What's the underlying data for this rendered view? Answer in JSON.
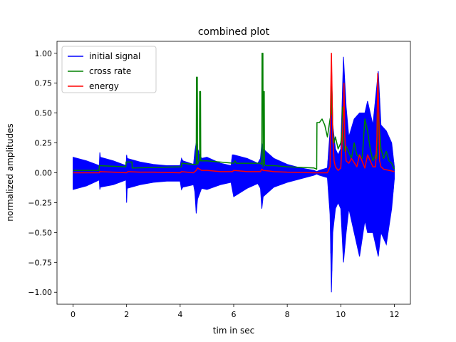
{
  "chart_data": {
    "type": "line",
    "title": "combined plot",
    "xlabel": "tim in sec",
    "ylabel": "normalized amplitudes",
    "xlim": [
      -0.6,
      12.6
    ],
    "ylim": [
      -1.1,
      1.1
    ],
    "xticks": [
      0,
      2,
      4,
      6,
      8,
      10,
      12
    ],
    "xtick_labels": [
      "0",
      "2",
      "4",
      "6",
      "8",
      "10",
      "12"
    ],
    "yticks": [
      -1.0,
      -0.75,
      -0.5,
      -0.25,
      0.0,
      0.25,
      0.5,
      0.75,
      1.0
    ],
    "ytick_labels": [
      "−1.00",
      "−0.75",
      "−0.50",
      "−0.25",
      "0.00",
      "0.25",
      "0.50",
      "0.75",
      "1.00"
    ],
    "grid": false,
    "legend_position": "top-left",
    "series": [
      {
        "name": "initial signal",
        "color": "#0000ff",
        "kind": "envelope",
        "x": [
          0.0,
          0.5,
          0.98,
          1.0,
          1.02,
          1.5,
          1.98,
          2.0,
          2.02,
          2.5,
          3.0,
          3.5,
          4.0,
          4.05,
          4.1,
          4.5,
          4.55,
          4.6,
          4.65,
          4.8,
          5.0,
          5.5,
          5.9,
          5.95,
          6.0,
          6.5,
          6.9,
          7.0,
          7.05,
          7.1,
          7.5,
          8.0,
          8.5,
          9.0,
          9.1,
          9.2,
          9.5,
          9.6,
          9.65,
          9.7,
          9.8,
          9.9,
          10.0,
          10.1,
          10.2,
          10.3,
          10.5,
          10.7,
          10.9,
          11.0,
          11.2,
          11.4,
          11.5,
          11.7,
          11.9,
          12.0
        ],
        "upper": [
          0.13,
          0.1,
          0.06,
          0.17,
          0.13,
          0.1,
          0.06,
          0.15,
          0.12,
          0.09,
          0.07,
          0.06,
          0.06,
          0.12,
          0.1,
          0.07,
          0.18,
          0.25,
          0.2,
          0.12,
          0.13,
          0.08,
          0.06,
          0.15,
          0.15,
          0.12,
          0.08,
          0.12,
          0.25,
          0.2,
          0.12,
          0.07,
          0.04,
          0.02,
          0.01,
          0.02,
          0.04,
          0.35,
          0.95,
          0.4,
          0.2,
          0.15,
          0.2,
          0.97,
          0.55,
          0.3,
          0.45,
          0.5,
          0.5,
          0.6,
          0.4,
          0.85,
          0.4,
          0.35,
          0.25,
          0.05
        ],
        "lower": [
          -0.14,
          -0.11,
          -0.06,
          -0.14,
          -0.12,
          -0.1,
          -0.06,
          -0.25,
          -0.13,
          -0.1,
          -0.08,
          -0.07,
          -0.07,
          -0.14,
          -0.12,
          -0.1,
          -0.16,
          -0.34,
          -0.22,
          -0.13,
          -0.14,
          -0.1,
          -0.08,
          -0.14,
          -0.2,
          -0.13,
          -0.09,
          -0.13,
          -0.3,
          -0.2,
          -0.12,
          -0.08,
          -0.05,
          -0.02,
          -0.01,
          -0.02,
          -0.04,
          -0.35,
          -1.0,
          -0.5,
          -0.3,
          -0.25,
          -0.3,
          -0.75,
          -0.5,
          -0.3,
          -0.5,
          -0.7,
          -0.4,
          -0.5,
          -0.5,
          -0.7,
          -0.5,
          -0.6,
          -0.3,
          -0.05
        ]
      },
      {
        "name": "cross rate",
        "color": "#008000",
        "kind": "line",
        "x": [
          0.0,
          0.97,
          0.98,
          1.97,
          1.98,
          2.2,
          2.21,
          4.05,
          4.06,
          4.5,
          4.6,
          4.61,
          4.64,
          4.65,
          4.7,
          4.72,
          4.73,
          4.76,
          4.77,
          5.0,
          6.0,
          6.05,
          6.1,
          7.0,
          7.05,
          7.06,
          7.09,
          7.1,
          7.11,
          7.14,
          7.15,
          7.2,
          7.5,
          8.0,
          9.0,
          9.1,
          9.11,
          9.2,
          9.3,
          9.4,
          9.5,
          9.6,
          9.65,
          9.66,
          9.7,
          9.75,
          9.8,
          9.9,
          10.0,
          10.05,
          10.06,
          10.1,
          10.15,
          10.2,
          10.4,
          10.5,
          10.6,
          10.8,
          10.9,
          11.0,
          11.1,
          11.2,
          11.3,
          11.35,
          11.4,
          11.5,
          11.6,
          11.7,
          11.8,
          11.9,
          12.0
        ],
        "y": [
          0.02,
          0.02,
          0.06,
          0.05,
          0.09,
          0.09,
          0.04,
          0.05,
          0.08,
          0.07,
          0.07,
          0.8,
          0.8,
          0.07,
          0.1,
          0.1,
          0.68,
          0.68,
          0.1,
          0.1,
          0.08,
          0.1,
          0.08,
          0.08,
          0.07,
          1.0,
          1.0,
          0.05,
          0.68,
          0.68,
          0.07,
          0.06,
          0.06,
          0.05,
          0.04,
          0.03,
          0.42,
          0.42,
          0.45,
          0.4,
          0.3,
          0.45,
          0.5,
          0.75,
          0.35,
          0.25,
          0.3,
          0.2,
          0.25,
          0.35,
          0.55,
          0.25,
          0.18,
          0.22,
          0.12,
          0.25,
          0.15,
          0.12,
          0.45,
          0.35,
          0.2,
          0.1,
          0.15,
          0.12,
          0.5,
          0.2,
          0.12,
          0.18,
          0.1,
          0.08,
          0.03
        ]
      },
      {
        "name": "energy",
        "color": "#ff0000",
        "kind": "line",
        "x": [
          0.0,
          0.98,
          1.0,
          1.5,
          2.0,
          2.05,
          2.5,
          3.0,
          4.0,
          4.05,
          4.5,
          4.6,
          4.65,
          4.8,
          5.0,
          5.5,
          5.95,
          6.0,
          6.5,
          7.0,
          7.05,
          7.1,
          7.5,
          8.0,
          9.0,
          9.5,
          9.6,
          9.62,
          9.65,
          9.7,
          9.75,
          9.8,
          9.9,
          10.0,
          10.1,
          10.12,
          10.15,
          10.2,
          10.3,
          10.4,
          10.6,
          10.7,
          10.9,
          11.0,
          11.1,
          11.2,
          11.3,
          11.35,
          11.38,
          11.42,
          11.45,
          11.5,
          11.6,
          11.8,
          12.0
        ],
        "y": [
          0.0,
          0.0,
          0.01,
          0.005,
          0.0,
          0.01,
          0.005,
          0.005,
          0.0,
          0.01,
          0.0,
          0.02,
          0.04,
          0.02,
          0.02,
          0.01,
          0.01,
          0.02,
          0.01,
          0.01,
          0.03,
          0.02,
          0.01,
          0.005,
          0.0,
          0.0,
          0.05,
          0.6,
          1.0,
          0.3,
          0.1,
          0.05,
          0.02,
          0.04,
          0.5,
          0.75,
          0.3,
          0.1,
          0.08,
          0.12,
          0.05,
          0.15,
          0.04,
          0.15,
          0.1,
          0.05,
          0.05,
          0.3,
          0.83,
          0.5,
          0.1,
          0.05,
          0.03,
          0.02,
          0.01
        ]
      }
    ]
  }
}
